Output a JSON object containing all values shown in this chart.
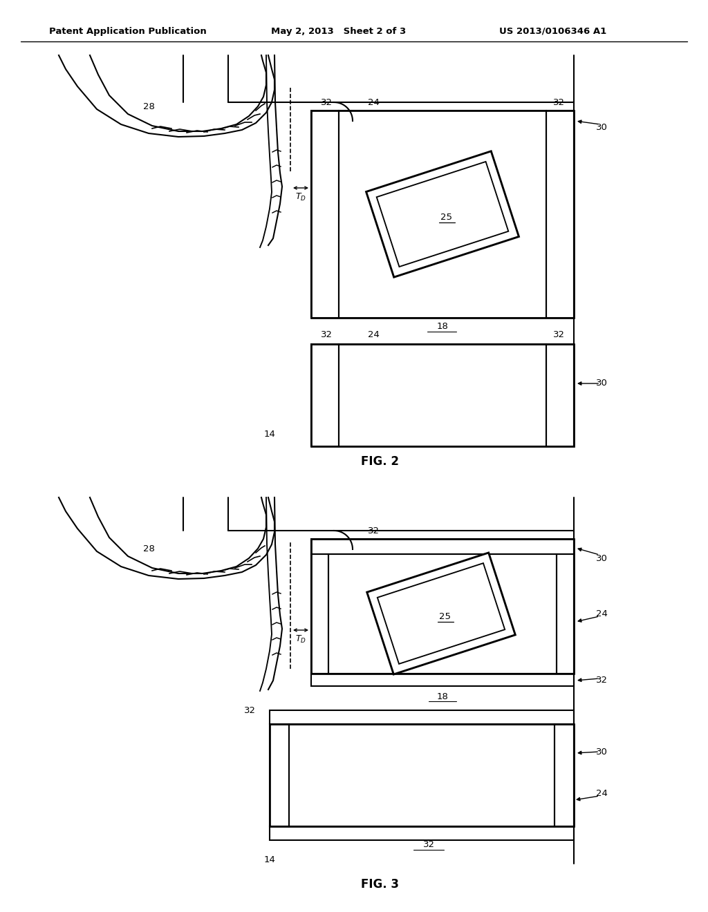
{
  "bg_color": "#ffffff",
  "header_text1": "Patent Application Publication",
  "header_text2": "May 2, 2013   Sheet 2 of 3",
  "header_text3": "US 2013/0106346 A1",
  "fig2_label": "FIG. 2",
  "fig3_label": "FIG. 3",
  "font_color": "#000000",
  "line_color": "#000000",
  "line_width": 1.5
}
